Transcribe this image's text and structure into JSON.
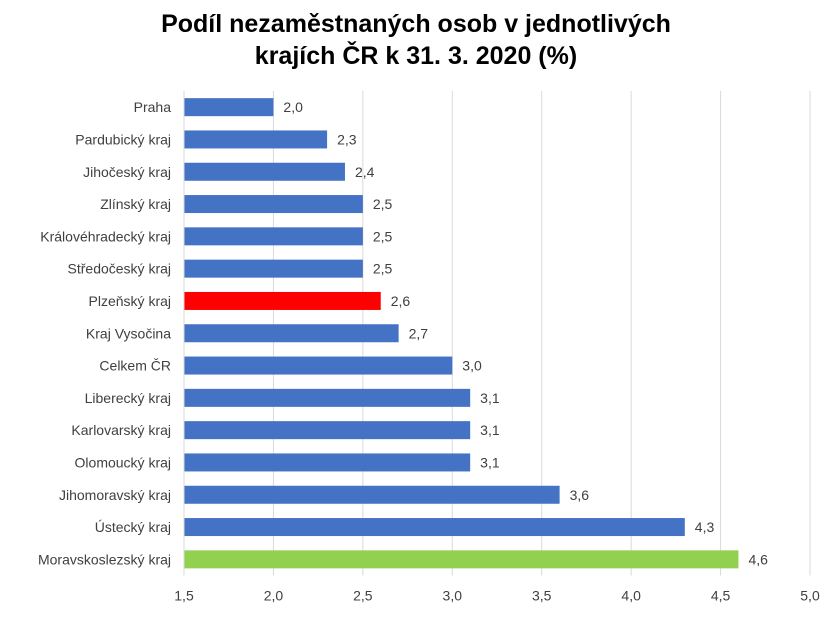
{
  "chart_data": {
    "type": "bar",
    "orientation": "horizontal",
    "title_lines": [
      "Podíl nezaměstnaných osob v jednotlivých",
      "krajích ČR k 31. 3. 2020 (%)"
    ],
    "categories": [
      "Praha",
      "Pardubický kraj",
      "Jihočeský kraj",
      "Zlínský kraj",
      "Královéhradecký kraj",
      "Středočeský kraj",
      "Plzeňský kraj",
      "Kraj Vysočina",
      "Celkem ČR",
      "Liberecký kraj",
      "Karlovarský kraj",
      "Olomoucký kraj",
      "Jihomoravský kraj",
      "Ústecký kraj",
      "Moravskoslezský kraj"
    ],
    "values": [
      2.0,
      2.3,
      2.4,
      2.5,
      2.5,
      2.5,
      2.6,
      2.7,
      3.0,
      3.1,
      3.1,
      3.1,
      3.6,
      4.3,
      4.6
    ],
    "value_labels": [
      "2,0",
      "2,3",
      "2,4",
      "2,5",
      "2,5",
      "2,5",
      "2,6",
      "2,7",
      "3,0",
      "3,1",
      "3,1",
      "3,1",
      "3,6",
      "4,3",
      "4,6"
    ],
    "xlim": [
      1.5,
      5.0
    ],
    "x_ticks": [
      "1,5",
      "2,0",
      "2,5",
      "3,0",
      "3,5",
      "4,0",
      "4,5",
      "5,0"
    ],
    "grid": true,
    "colors": {
      "default": "#4472c4",
      "highlight_red": "#ff0000",
      "highlight_green": "#92d050",
      "grid": "#d9d9d9",
      "text": "#404040"
    },
    "bar_colors": [
      "default",
      "default",
      "default",
      "default",
      "default",
      "default",
      "highlight_red",
      "default",
      "default",
      "default",
      "default",
      "default",
      "default",
      "default",
      "highlight_green"
    ]
  }
}
